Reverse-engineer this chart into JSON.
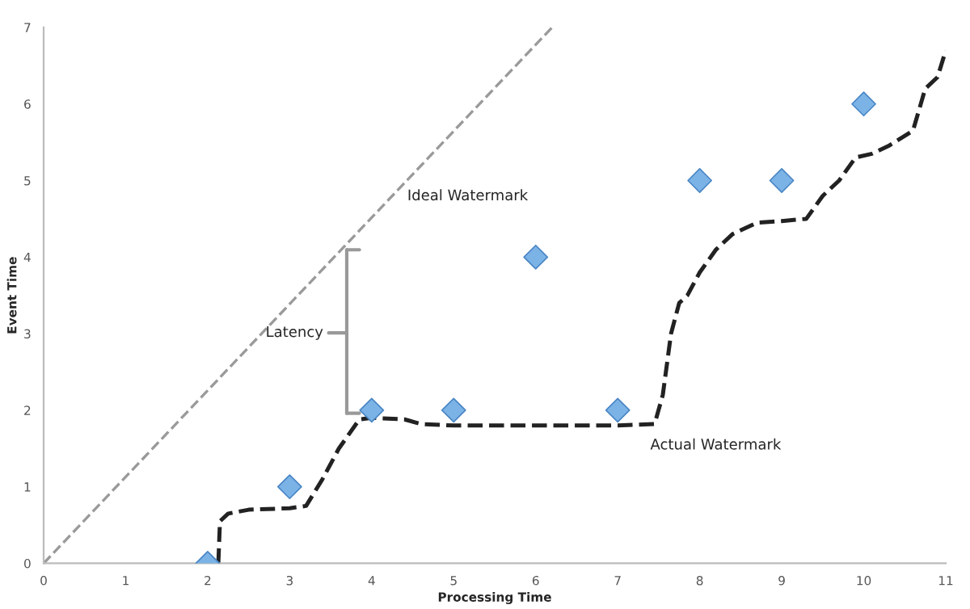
{
  "chart_data": {
    "type": "scatter",
    "xlabel": "Processing Time",
    "ylabel": "Event Time",
    "xlim": [
      0,
      11
    ],
    "ylim": [
      0,
      7
    ],
    "xticks": [
      0,
      1,
      2,
      3,
      4,
      5,
      6,
      7,
      8,
      9,
      10,
      11
    ],
    "yticks": [
      0,
      1,
      2,
      3,
      4,
      5,
      6,
      7
    ],
    "grid": false,
    "legend": false,
    "series": [
      {
        "type": "line",
        "name": "Ideal Watermark",
        "line_style": "dashed",
        "marker": "none",
        "color": "#9a9a9a",
        "x": [
          0,
          6.2
        ],
        "values": [
          0,
          7
        ]
      },
      {
        "type": "line",
        "name": "Actual Watermark",
        "line_style": "dashed",
        "marker": "none",
        "color": "#222222",
        "x": [
          2.13,
          2.15,
          2.25,
          2.5,
          3.0,
          3.2,
          3.4,
          3.6,
          3.85,
          4.0,
          4.4,
          4.6,
          5.0,
          6.0,
          7.0,
          7.45,
          7.55,
          7.65,
          7.75,
          7.85,
          8.0,
          8.2,
          8.4,
          8.7,
          9.0,
          9.3,
          9.5,
          9.7,
          9.9,
          10.1,
          10.3,
          10.6,
          10.75,
          10.9,
          11.0
        ],
        "values": [
          0,
          0.55,
          0.65,
          0.7,
          0.72,
          0.75,
          1.1,
          1.5,
          1.88,
          1.9,
          1.88,
          1.82,
          1.8,
          1.8,
          1.8,
          1.82,
          2.2,
          3.0,
          3.4,
          3.5,
          3.8,
          4.1,
          4.3,
          4.45,
          4.47,
          4.5,
          4.8,
          5.0,
          5.3,
          5.35,
          5.45,
          5.65,
          6.2,
          6.35,
          6.7
        ]
      },
      {
        "marker": "diamond",
        "color": "#7cb3e6",
        "x": [
          2,
          3,
          4,
          5,
          6,
          7,
          8,
          9,
          10
        ],
        "values": [
          0,
          1,
          2,
          2,
          4,
          2,
          5,
          5,
          6
        ]
      }
    ],
    "annotations": [
      "Latency"
    ]
  }
}
